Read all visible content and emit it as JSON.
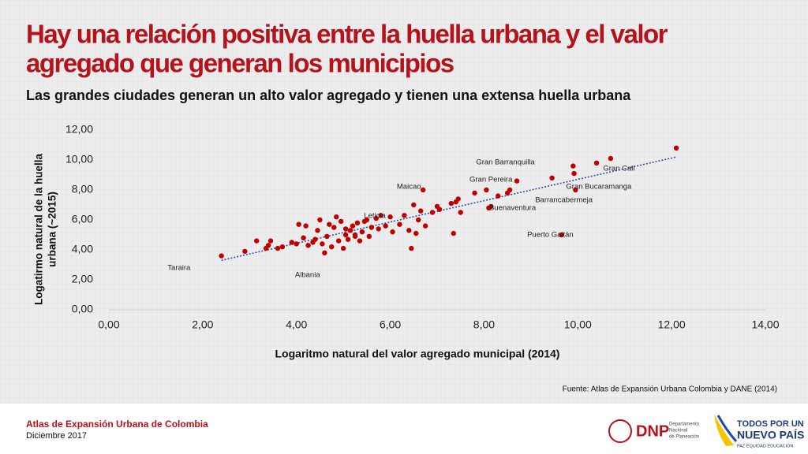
{
  "title": "Hay una relación positiva entre la huella urbana y el valor agregado que generan los municipios",
  "title_lines": [
    "Hay una relación positiva entre la huella urbana y el valor",
    "agregado que generan los municipios"
  ],
  "subtitle": "Las grandes ciudades generan un alto valor agregado y tienen una extensa huella urbana",
  "chart_data": {
    "type": "scatter",
    "x_label": "Logaritmo natural del valor agregado municipal (2014)",
    "y_label": [
      "Logatirmo natural de la huella",
      "urbana (~2015)"
    ],
    "color": "#c00000",
    "trendline": {
      "x": [
        2.4,
        12.1
      ],
      "y": [
        3.3,
        10.2
      ],
      "color": "#2f4f9f"
    },
    "x": [
      2.4,
      2.9,
      3.15,
      3.35,
      3.45,
      3.4,
      3.6,
      3.7,
      3.9,
      4.05,
      4.2,
      4.15,
      4.25,
      4.35,
      4.45,
      4.5,
      4.55,
      4.6,
      4.65,
      4.7,
      4.75,
      4.8,
      4.85,
      4.9,
      4.95,
      5.0,
      5.05,
      5.1,
      5.15,
      5.2,
      5.25,
      5.3,
      5.35,
      5.4,
      5.45,
      5.5,
      5.55,
      5.6,
      5.7,
      5.75,
      5.8,
      5.9,
      6.0,
      6.05,
      6.2,
      6.3,
      6.4,
      6.45,
      6.5,
      6.55,
      6.6,
      6.65,
      6.7,
      6.75,
      6.9,
      7.0,
      7.05,
      7.3,
      7.35,
      7.4,
      7.45,
      7.5,
      7.8,
      8.05,
      8.1,
      8.15,
      8.3,
      8.5,
      8.55,
      8.7,
      9.45,
      9.65,
      9.9,
      9.92,
      9.95,
      10.4,
      10.7,
      12.1,
      5.05,
      4.4,
      5.25,
      4.0
    ],
    "y": [
      3.6,
      3.9,
      4.6,
      4.1,
      4.6,
      4.3,
      4.1,
      4.2,
      4.5,
      5.7,
      5.6,
      4.8,
      4.3,
      4.5,
      5.3,
      6.0,
      4.4,
      3.8,
      4.9,
      5.7,
      4.2,
      5.5,
      6.2,
      4.6,
      5.9,
      4.1,
      5.0,
      4.7,
      5.3,
      5.6,
      5.0,
      5.8,
      4.6,
      5.2,
      5.9,
      6.0,
      4.9,
      5.5,
      6.1,
      5.4,
      6.3,
      5.6,
      6.2,
      5.2,
      5.7,
      6.3,
      5.3,
      4.1,
      7.0,
      5.1,
      6.0,
      6.6,
      8.0,
      5.6,
      6.5,
      6.9,
      6.7,
      7.1,
      5.1,
      7.2,
      7.4,
      6.5,
      7.8,
      8.0,
      6.8,
      6.9,
      7.6,
      7.8,
      8.0,
      8.6,
      8.8,
      5.0,
      9.6,
      9.1,
      8.0,
      9.8,
      10.1,
      10.8,
      5.4,
      4.7,
      4.9,
      4.4
    ],
    "xlim": [
      0,
      14
    ],
    "ylim": [
      0,
      12
    ],
    "xticks": [
      {
        "value": 0,
        "label": "0,00"
      },
      {
        "value": 2,
        "label": "2,00"
      },
      {
        "value": 4,
        "label": "4,00"
      },
      {
        "value": 6,
        "label": "6,00"
      },
      {
        "value": 8,
        "label": "8,00"
      },
      {
        "value": 10,
        "label": "10,00"
      },
      {
        "value": 12,
        "label": "12,00"
      },
      {
        "value": 14,
        "label": "14,00"
      }
    ],
    "yticks": [
      {
        "value": 0,
        "label": "0,00"
      },
      {
        "value": 2,
        "label": "2,00"
      },
      {
        "value": 4,
        "label": "4,00"
      },
      {
        "value": 6,
        "label": "6,00"
      },
      {
        "value": 8,
        "label": "8,00"
      },
      {
        "value": 10,
        "label": "10,00"
      },
      {
        "value": 12,
        "label": "12,00"
      }
    ],
    "annotations": [
      {
        "text": "Gran Barranquilla",
        "x": 7.83,
        "y": 9.84
      },
      {
        "text": "Gran Pereira",
        "x": 7.69,
        "y": 8.68
      },
      {
        "text": "Maicao",
        "x": 6.14,
        "y": 8.2
      },
      {
        "text": "Leticia",
        "x": 5.44,
        "y": 6.26
      },
      {
        "text": "Buenaventura",
        "x": 8.11,
        "y": 6.79
      },
      {
        "text": "Barrancabermeja",
        "x": 9.09,
        "y": 7.32
      },
      {
        "text": "Gran Bucaramanga",
        "x": 9.75,
        "y": 8.2
      },
      {
        "text": "Gran Cali",
        "x": 10.54,
        "y": 9.42
      },
      {
        "text": "Puerto Gaitán",
        "x": 8.92,
        "y": 5.0
      },
      {
        "text": "Taraira",
        "x": 1.25,
        "y": 2.79
      },
      {
        "text": "Albania",
        "x": 3.97,
        "y": 2.32
      }
    ]
  },
  "source": "Fuente: Atlas de Expansión Urbana Colombia  y DANE (2014)",
  "footer": {
    "title": "Atlas de Expansión Urbana de Colombia",
    "date": "Diciembre 2017"
  },
  "logos": {
    "dnp": "DNP",
    "dnp_lines": [
      "Departamento",
      "Nacional",
      "de Planeación"
    ],
    "gov_lines": [
      "TODOS POR UN",
      "NUEVO PAÍS"
    ],
    "gov_tagline": "PAZ  EQUIDAD  EDUCACIÓN"
  }
}
